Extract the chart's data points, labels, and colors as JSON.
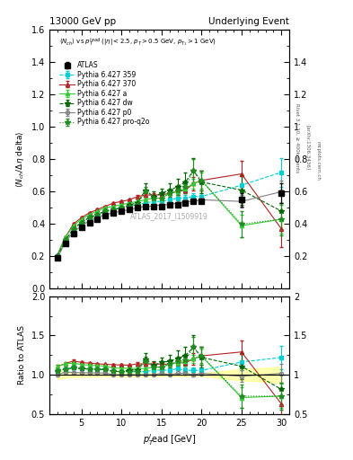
{
  "title_left": "13000 GeV pp",
  "title_right": "Underlying Event",
  "annotation": "ATLAS_2017_I1509919",
  "ylabel_main": "⟨N$_{ch}$/ Δη delta⟩",
  "ylabel_ratio": "Ratio to ATLAS",
  "rivet_label": "Rivet 3.1.10, ≥ 400k events",
  "arxiv_label": "[arXiv:1306.3436]",
  "mcplots_label": "mcplots.cern.ch",
  "ylim_main": [
    0.0,
    1.6
  ],
  "ylim_ratio": [
    0.5,
    2.0
  ],
  "xlim": [
    1,
    31
  ],
  "atlas_x": [
    2,
    3,
    4,
    5,
    6,
    7,
    8,
    9,
    10,
    11,
    12,
    13,
    14,
    15,
    16,
    17,
    18,
    19,
    20,
    25,
    30
  ],
  "atlas_y": [
    0.19,
    0.28,
    0.34,
    0.38,
    0.41,
    0.43,
    0.45,
    0.47,
    0.48,
    0.49,
    0.5,
    0.51,
    0.51,
    0.51,
    0.52,
    0.52,
    0.53,
    0.54,
    0.54,
    0.55,
    0.59
  ],
  "atlas_yerr": [
    0.01,
    0.01,
    0.01,
    0.01,
    0.01,
    0.01,
    0.01,
    0.01,
    0.01,
    0.01,
    0.01,
    0.01,
    0.01,
    0.01,
    0.01,
    0.01,
    0.01,
    0.01,
    0.01,
    0.04,
    0.06
  ],
  "p359_x": [
    2,
    3,
    4,
    5,
    6,
    7,
    8,
    9,
    10,
    11,
    12,
    13,
    14,
    15,
    16,
    17,
    18,
    19,
    20,
    25,
    30
  ],
  "p359_y": [
    0.2,
    0.3,
    0.37,
    0.41,
    0.44,
    0.46,
    0.48,
    0.49,
    0.5,
    0.51,
    0.52,
    0.53,
    0.54,
    0.54,
    0.55,
    0.56,
    0.56,
    0.57,
    0.57,
    0.64,
    0.72
  ],
  "p359_yerr": [
    0.005,
    0.005,
    0.005,
    0.005,
    0.005,
    0.005,
    0.005,
    0.005,
    0.005,
    0.005,
    0.005,
    0.01,
    0.01,
    0.01,
    0.01,
    0.01,
    0.02,
    0.02,
    0.02,
    0.06,
    0.09
  ],
  "p370_x": [
    2,
    3,
    4,
    5,
    6,
    7,
    8,
    9,
    10,
    11,
    12,
    13,
    14,
    15,
    16,
    17,
    18,
    19,
    20,
    25,
    30
  ],
  "p370_y": [
    0.21,
    0.32,
    0.4,
    0.44,
    0.47,
    0.49,
    0.51,
    0.53,
    0.54,
    0.55,
    0.57,
    0.58,
    0.58,
    0.58,
    0.59,
    0.6,
    0.61,
    0.65,
    0.67,
    0.71,
    0.37
  ],
  "p370_yerr": [
    0.005,
    0.005,
    0.005,
    0.005,
    0.005,
    0.005,
    0.005,
    0.005,
    0.005,
    0.005,
    0.01,
    0.01,
    0.01,
    0.01,
    0.01,
    0.02,
    0.02,
    0.04,
    0.06,
    0.08,
    0.11
  ],
  "pa_x": [
    2,
    3,
    4,
    5,
    6,
    7,
    8,
    9,
    10,
    11,
    12,
    13,
    14,
    15,
    16,
    17,
    18,
    19,
    20,
    25,
    30
  ],
  "pa_y": [
    0.21,
    0.32,
    0.39,
    0.43,
    0.46,
    0.48,
    0.5,
    0.51,
    0.52,
    0.53,
    0.54,
    0.55,
    0.56,
    0.56,
    0.59,
    0.6,
    0.62,
    0.65,
    0.67,
    0.39,
    0.43
  ],
  "pa_yerr": [
    0.005,
    0.005,
    0.005,
    0.005,
    0.005,
    0.005,
    0.005,
    0.005,
    0.005,
    0.005,
    0.01,
    0.01,
    0.01,
    0.01,
    0.01,
    0.02,
    0.02,
    0.03,
    0.05,
    0.07,
    0.09
  ],
  "pdw_x": [
    2,
    3,
    4,
    5,
    6,
    7,
    8,
    9,
    10,
    11,
    12,
    13,
    14,
    15,
    16,
    17,
    18,
    19,
    20,
    25,
    30
  ],
  "pdw_y": [
    0.2,
    0.3,
    0.37,
    0.41,
    0.44,
    0.46,
    0.48,
    0.49,
    0.5,
    0.52,
    0.53,
    0.61,
    0.57,
    0.59,
    0.61,
    0.63,
    0.66,
    0.73,
    0.66,
    0.61,
    0.48
  ],
  "pdw_yerr": [
    0.005,
    0.005,
    0.005,
    0.005,
    0.005,
    0.005,
    0.005,
    0.005,
    0.005,
    0.005,
    0.01,
    0.04,
    0.03,
    0.03,
    0.04,
    0.05,
    0.06,
    0.08,
    0.07,
    0.09,
    0.11
  ],
  "pp0_x": [
    2,
    3,
    4,
    5,
    6,
    7,
    8,
    9,
    10,
    11,
    12,
    13,
    14,
    15,
    16,
    17,
    18,
    19,
    20,
    25,
    30
  ],
  "pp0_y": [
    0.19,
    0.29,
    0.35,
    0.39,
    0.42,
    0.44,
    0.46,
    0.47,
    0.48,
    0.49,
    0.5,
    0.51,
    0.51,
    0.52,
    0.52,
    0.53,
    0.54,
    0.54,
    0.55,
    0.54,
    0.6
  ],
  "pp0_yerr": [
    0.005,
    0.005,
    0.005,
    0.005,
    0.005,
    0.005,
    0.005,
    0.005,
    0.005,
    0.005,
    0.005,
    0.005,
    0.005,
    0.005,
    0.005,
    0.005,
    0.01,
    0.01,
    0.01,
    0.04,
    0.07
  ],
  "pq2o_x": [
    2,
    3,
    4,
    5,
    6,
    7,
    8,
    9,
    10,
    11,
    12,
    13,
    14,
    15,
    16,
    17,
    18,
    19,
    20,
    25,
    30
  ],
  "pq2o_y": [
    0.2,
    0.3,
    0.37,
    0.41,
    0.44,
    0.46,
    0.48,
    0.49,
    0.5,
    0.51,
    0.52,
    0.6,
    0.56,
    0.56,
    0.59,
    0.61,
    0.63,
    0.73,
    0.67,
    0.4,
    0.43
  ],
  "pq2o_yerr": [
    0.005,
    0.005,
    0.005,
    0.005,
    0.005,
    0.005,
    0.005,
    0.005,
    0.005,
    0.005,
    0.01,
    0.03,
    0.02,
    0.02,
    0.03,
    0.03,
    0.04,
    0.07,
    0.06,
    0.08,
    0.1
  ],
  "color_atlas": "#000000",
  "color_p359": "#00ced1",
  "color_p370": "#b22222",
  "color_pa": "#32cd32",
  "color_pdw": "#006400",
  "color_pp0": "#808080",
  "color_pq2o": "#228b22",
  "ratio_band_color": "#ffff99",
  "ratio_band_alpha": 0.8
}
